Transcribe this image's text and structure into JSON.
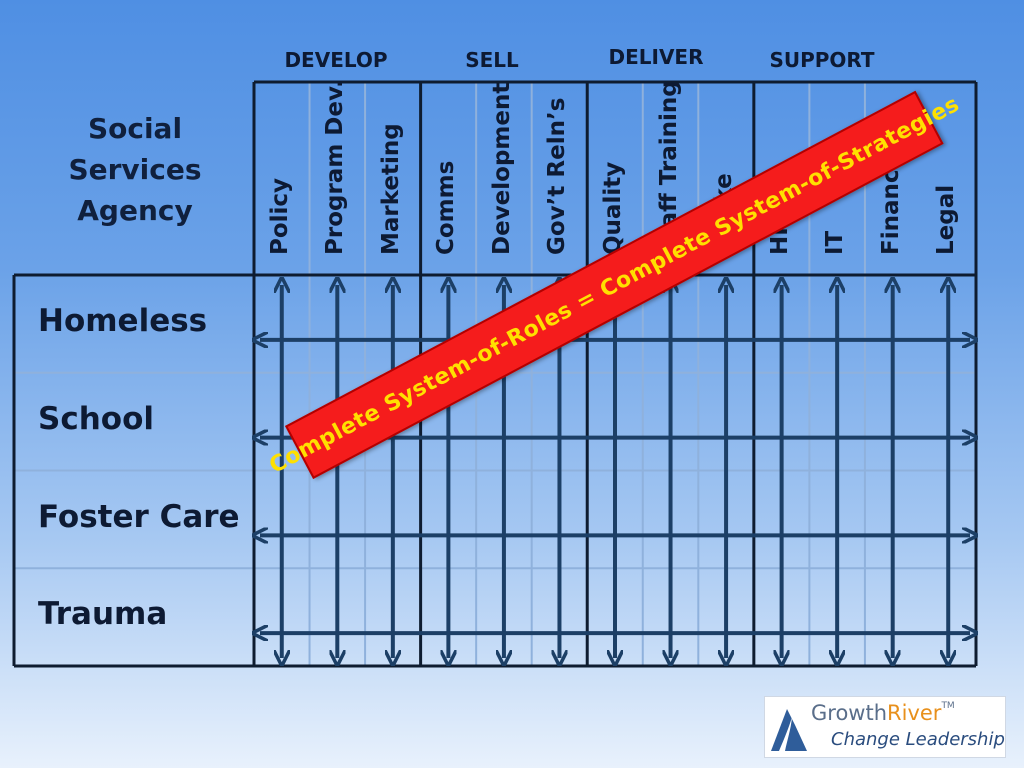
{
  "groups": {
    "develop": "DEVELOP",
    "sell": "SELL",
    "deliver": "DELIVER",
    "support": "SUPPORT"
  },
  "agency": {
    "line1": "Social",
    "line2": "Services",
    "line3": "Agency"
  },
  "columns": [
    "Policy",
    "Program Dev.",
    "Marketing",
    "Comms",
    "Development",
    "Gov’t Reln’s",
    "Quality",
    "Staff Training",
    "Intake",
    "HR",
    "IT",
    "Finance",
    "Legal"
  ],
  "rows": [
    "Homeless",
    "School",
    "Foster Care",
    "Trauma"
  ],
  "banner": {
    "text": "Complete System-of-Roles = Complete System-of-Strategies"
  },
  "logo": {
    "brand_part1": "Growth",
    "brand_part2": "River",
    "trademark": "TM",
    "tagline": "Change Leadership"
  },
  "colors": {
    "arrow": "#1c3f66",
    "banner_fill": "#f51c1c",
    "banner_text": "#ffe000",
    "logo_accent": "#e8901c"
  }
}
